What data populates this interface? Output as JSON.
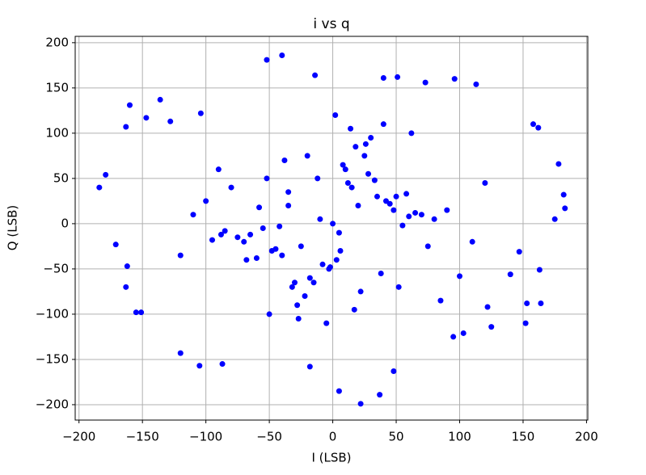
{
  "chart_data": {
    "type": "scatter",
    "title": "i vs q",
    "x_label": "I (LSB)",
    "y_label": "Q (LSB)",
    "xlim": [
      -203,
      201
    ],
    "ylim": [
      -217,
      207
    ],
    "grid": true,
    "xticks": [
      {
        "value": -200,
        "label": "−200"
      },
      {
        "value": -150,
        "label": "−150"
      },
      {
        "value": -100,
        "label": "−100"
      },
      {
        "value": -50,
        "label": "−50"
      },
      0,
      50,
      100,
      150,
      200
    ],
    "yticks": [
      {
        "value": -200,
        "label": "−200"
      },
      {
        "value": -150,
        "label": "−150"
      },
      {
        "value": -100,
        "label": "−100"
      },
      {
        "value": -50,
        "label": "−50"
      },
      0,
      50,
      100,
      150,
      200
    ],
    "series": [
      {
        "color": "#0000ff",
        "x": [
          -184,
          -179,
          -160,
          -163,
          -147,
          -136,
          -128,
          -104,
          -52,
          -40,
          -14,
          40,
          51,
          73,
          96,
          113,
          158,
          162,
          178,
          182,
          183,
          175,
          152,
          153,
          164,
          163,
          5,
          22,
          37,
          48,
          -87,
          -105,
          -120,
          -18,
          -171,
          -162,
          -151,
          -155,
          -163,
          103,
          125,
          140,
          147,
          122,
          -10,
          5,
          20,
          -25,
          35,
          -40,
          12,
          -3,
          48,
          -55,
          28,
          -18,
          60,
          -65,
          8,
          -32,
          42,
          -48,
          15,
          -8,
          70,
          -75,
          25,
          -22,
          55,
          -58,
          3,
          -12,
          38,
          -35,
          80,
          -85,
          18,
          -28,
          45,
          -45,
          0,
          30,
          -50,
          65,
          -70,
          10,
          -15,
          50,
          -60,
          22,
          -38,
          90,
          -95,
          33,
          -5,
          75,
          -80,
          14,
          -27,
          58,
          -2,
          40,
          -42,
          100,
          -100,
          6,
          -20,
          85,
          -88,
          26,
          -52,
          110,
          -110,
          2,
          95,
          -30,
          62,
          -68,
          17,
          -90,
          52,
          -35,
          120,
          -120
        ],
        "y": [
          40,
          54,
          131,
          107,
          117,
          137,
          113,
          122,
          181,
          186,
          164,
          161,
          162,
          156,
          160,
          154,
          110,
          106,
          66,
          32,
          17,
          5,
          -110,
          -88,
          -88,
          -51,
          -185,
          -199,
          -189,
          -163,
          -155,
          -157,
          -143,
          -158,
          -23,
          -47,
          -98,
          -98,
          -70,
          -121,
          -114,
          -56,
          -31,
          -92,
          5,
          -10,
          20,
          -25,
          30,
          -35,
          45,
          -50,
          15,
          -5,
          55,
          -60,
          8,
          -12,
          65,
          -70,
          25,
          -30,
          40,
          -45,
          10,
          -15,
          75,
          -80,
          -2,
          18,
          -40,
          50,
          -55,
          35,
          5,
          -8,
          85,
          -90,
          22,
          -28,
          0,
          95,
          -100,
          12,
          -20,
          60,
          -65,
          30,
          -38,
          -75,
          70,
          15,
          -18,
          48,
          -110,
          -25,
          40,
          105,
          -105,
          33,
          -48,
          110,
          -3,
          -58,
          25,
          -30,
          75,
          -85,
          -12,
          88,
          50,
          -20,
          10,
          120,
          -125,
          -65,
          100,
          -40,
          -95,
          60,
          -70,
          20,
          45,
          -35
        ]
      }
    ]
  }
}
